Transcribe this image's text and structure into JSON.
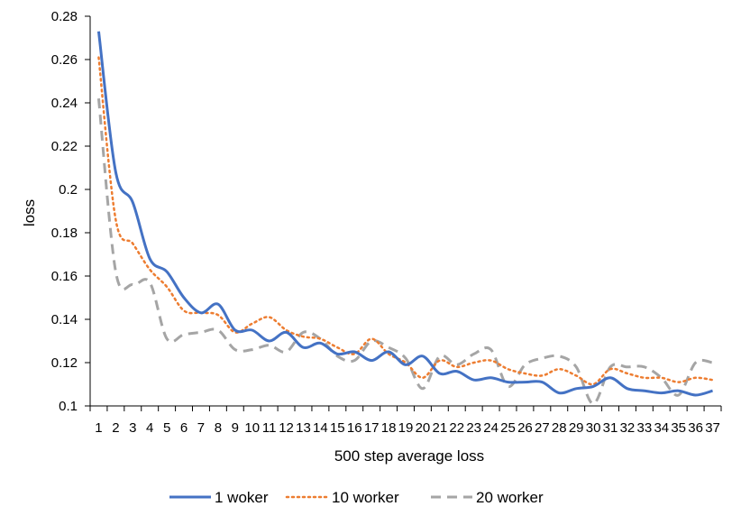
{
  "chart_data": {
    "type": "line",
    "title": "",
    "xlabel": "500 step average loss",
    "ylabel": "loss",
    "ylim": [
      0.1,
      0.28
    ],
    "yticks": [
      "0.1",
      "0.12",
      "0.14",
      "0.16",
      "0.18",
      "0.2",
      "0.22",
      "0.24",
      "0.26",
      "0.28"
    ],
    "categories": [
      "1",
      "2",
      "3",
      "4",
      "5",
      "6",
      "7",
      "8",
      "9",
      "10",
      "11",
      "12",
      "13",
      "14",
      "15",
      "16",
      "17",
      "18",
      "19",
      "20",
      "21",
      "22",
      "23",
      "24",
      "25",
      "26",
      "27",
      "28",
      "29",
      "30",
      "31",
      "32",
      "33",
      "34",
      "35",
      "36",
      "37"
    ],
    "legend_position": "bottom",
    "series": [
      {
        "name": "1 woker",
        "color": "#4472C4",
        "style": "solid",
        "values": [
          0.273,
          0.208,
          0.194,
          0.168,
          0.162,
          0.15,
          0.143,
          0.147,
          0.135,
          0.135,
          0.13,
          0.134,
          0.127,
          0.129,
          0.124,
          0.125,
          0.121,
          0.125,
          0.119,
          0.123,
          0.115,
          0.116,
          0.112,
          0.113,
          0.111,
          0.111,
          0.111,
          0.106,
          0.108,
          0.109,
          0.113,
          0.108,
          0.107,
          0.106,
          0.107,
          0.105,
          0.107
        ]
      },
      {
        "name": "10 worker",
        "color": "#ED7D31",
        "style": "dotted",
        "values": [
          0.261,
          0.186,
          0.175,
          0.163,
          0.155,
          0.144,
          0.143,
          0.142,
          0.134,
          0.138,
          0.141,
          0.135,
          0.132,
          0.131,
          0.127,
          0.124,
          0.131,
          0.124,
          0.12,
          0.113,
          0.121,
          0.118,
          0.12,
          0.121,
          0.117,
          0.115,
          0.114,
          0.117,
          0.114,
          0.11,
          0.117,
          0.115,
          0.113,
          0.113,
          0.111,
          0.113,
          0.112
        ]
      },
      {
        "name": "20 worker",
        "color": "#A5A5A5",
        "style": "dashed",
        "values": [
          0.242,
          0.162,
          0.156,
          0.157,
          0.131,
          0.133,
          0.134,
          0.135,
          0.126,
          0.126,
          0.128,
          0.125,
          0.134,
          0.131,
          0.123,
          0.121,
          0.13,
          0.127,
          0.122,
          0.108,
          0.123,
          0.119,
          0.124,
          0.126,
          0.109,
          0.119,
          0.122,
          0.123,
          0.118,
          0.101,
          0.118,
          0.118,
          0.118,
          0.113,
          0.105,
          0.12,
          0.12
        ]
      }
    ]
  }
}
